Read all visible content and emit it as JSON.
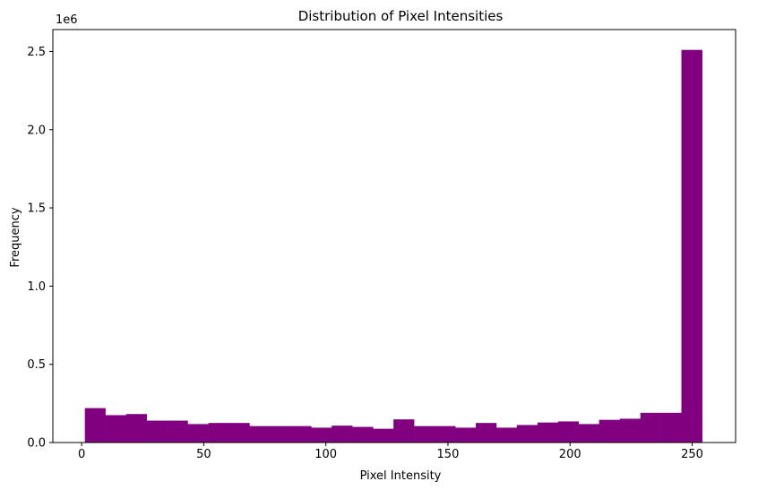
{
  "chart_data": {
    "type": "bar",
    "title": "Distribution of Pixel Intensities",
    "xlabel": "Pixel Intensity",
    "ylabel": "Frequency",
    "y_multiplier_label": "1e6",
    "xlim": [
      -11.8,
      267.8
    ],
    "ylim": [
      0,
      2640000
    ],
    "x_ticks": [
      0,
      50,
      100,
      150,
      200,
      250
    ],
    "x_tick_labels": [
      "0",
      "50",
      "100",
      "150",
      "200",
      "250"
    ],
    "y_ticks": [
      0,
      500000,
      1000000,
      1500000,
      2000000,
      2500000
    ],
    "y_tick_labels": [
      "0.0",
      "0.5",
      "1.0",
      "1.5",
      "2.0",
      "2.5"
    ],
    "bar_color": "#800080",
    "grid": false,
    "bins": [
      {
        "x0": 1.3,
        "x1": 9.7,
        "value": 220000
      },
      {
        "x0": 9.7,
        "x1": 18.2,
        "value": 175000
      },
      {
        "x0": 18.2,
        "x1": 26.6,
        "value": 182000
      },
      {
        "x0": 26.6,
        "x1": 35.0,
        "value": 140000
      },
      {
        "x0": 35.0,
        "x1": 43.4,
        "value": 140000
      },
      {
        "x0": 43.4,
        "x1": 51.9,
        "value": 118000
      },
      {
        "x0": 51.9,
        "x1": 60.3,
        "value": 125000
      },
      {
        "x0": 60.3,
        "x1": 68.7,
        "value": 125000
      },
      {
        "x0": 68.7,
        "x1": 77.1,
        "value": 105000
      },
      {
        "x0": 77.1,
        "x1": 85.6,
        "value": 105000
      },
      {
        "x0": 85.6,
        "x1": 94.0,
        "value": 105000
      },
      {
        "x0": 94.0,
        "x1": 102.4,
        "value": 95000
      },
      {
        "x0": 102.4,
        "x1": 110.8,
        "value": 108000
      },
      {
        "x0": 110.8,
        "x1": 119.3,
        "value": 100000
      },
      {
        "x0": 119.3,
        "x1": 127.7,
        "value": 88000
      },
      {
        "x0": 127.7,
        "x1": 136.1,
        "value": 148000
      },
      {
        "x0": 136.1,
        "x1": 144.5,
        "value": 105000
      },
      {
        "x0": 144.5,
        "x1": 153.0,
        "value": 105000
      },
      {
        "x0": 153.0,
        "x1": 161.4,
        "value": 95000
      },
      {
        "x0": 161.4,
        "x1": 169.8,
        "value": 125000
      },
      {
        "x0": 169.8,
        "x1": 178.2,
        "value": 95000
      },
      {
        "x0": 178.2,
        "x1": 186.7,
        "value": 112000
      },
      {
        "x0": 186.7,
        "x1": 195.1,
        "value": 128000
      },
      {
        "x0": 195.1,
        "x1": 203.5,
        "value": 135000
      },
      {
        "x0": 203.5,
        "x1": 211.9,
        "value": 118000
      },
      {
        "x0": 211.9,
        "x1": 220.4,
        "value": 145000
      },
      {
        "x0": 220.4,
        "x1": 228.8,
        "value": 152000
      },
      {
        "x0": 228.8,
        "x1": 237.2,
        "value": 190000
      },
      {
        "x0": 237.2,
        "x1": 245.6,
        "value": 190000
      },
      {
        "x0": 245.6,
        "x1": 254.1,
        "value": 2510000
      }
    ]
  }
}
